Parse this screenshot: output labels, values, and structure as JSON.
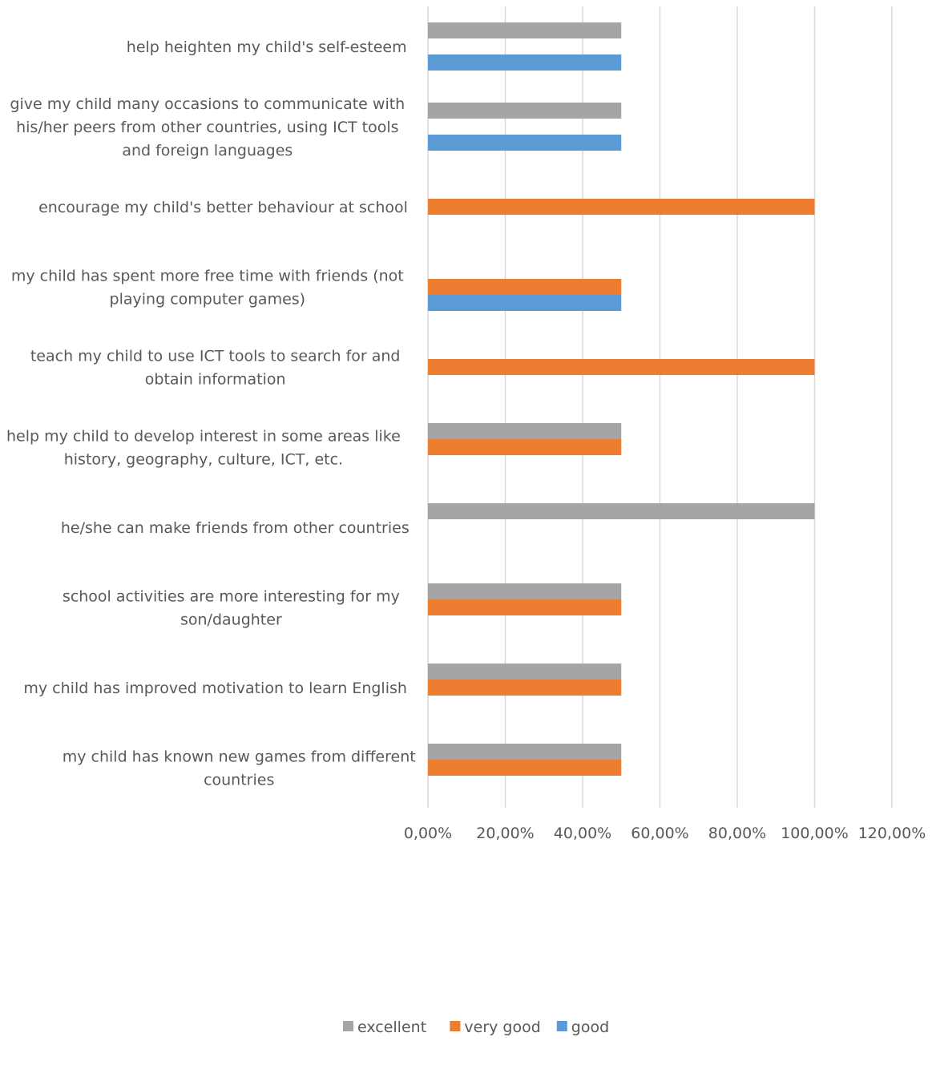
{
  "chart_data": {
    "type": "bar",
    "orientation": "horizontal",
    "categories": [
      "help heighten my child's self-esteem",
      "give my child many occasions to communicate with his/her peers from other countries, using ICT tools and foreign languages",
      "encourage my child's better behaviour at school",
      "my child has spent more free time with friends (not playing computer games)",
      "teach my child to use ICT tools to search for and obtain information",
      "help my child to develop interest in some areas like history, geography, culture, ICT, etc.",
      "he/she can make friends from other countries",
      "school activities are more interesting for my son/daughter",
      "my child has improved motivation to learn English",
      "my child has known new games from different countries"
    ],
    "category_label_lines": [
      [
        "help heighten my child's self-esteem"
      ],
      [
        "give my child many occasions to communicate with",
        "his/her peers from other countries, using ICT tools",
        "and foreign languages"
      ],
      [
        "encourage my child's better behaviour at school"
      ],
      [
        "my child has spent more free time with friends (not",
        "playing computer games)"
      ],
      [
        "teach my child to use ICT tools to search for and",
        "obtain information"
      ],
      [
        "help my child to develop interest in some areas like",
        "history, geography, culture, ICT, etc."
      ],
      [
        "he/she can make friends from other countries"
      ],
      [
        "school activities are more interesting for my",
        "son/daughter"
      ],
      [
        "my child has improved motivation to learn English"
      ],
      [
        "my child has known new games from different",
        "countries"
      ]
    ],
    "series": [
      {
        "name": "excellent",
        "color": "#a5a5a5",
        "values": [
          0.5,
          0.5,
          null,
          null,
          null,
          0.5,
          1.0,
          0.5,
          0.5,
          0.5
        ]
      },
      {
        "name": "very good",
        "color": "#ed7d31",
        "values": [
          null,
          null,
          1.0,
          0.5,
          1.0,
          0.5,
          null,
          0.5,
          0.5,
          0.5
        ]
      },
      {
        "name": "good",
        "color": "#5b9bd5",
        "values": [
          0.5,
          0.5,
          null,
          0.5,
          null,
          null,
          null,
          null,
          null,
          null
        ]
      }
    ],
    "xlim": [
      0,
      1.2
    ],
    "xticks": [
      0,
      0.2,
      0.4,
      0.6,
      0.8,
      1.0,
      1.2
    ],
    "xtick_labels": [
      "0,00%",
      "20,00%",
      "40,00%",
      "60,00%",
      "80,00%",
      "100,00%",
      "120,00%"
    ],
    "grid": true,
    "legend_position": "bottom",
    "gridline_color": "#d9d9d9",
    "text_color": "#595959"
  }
}
